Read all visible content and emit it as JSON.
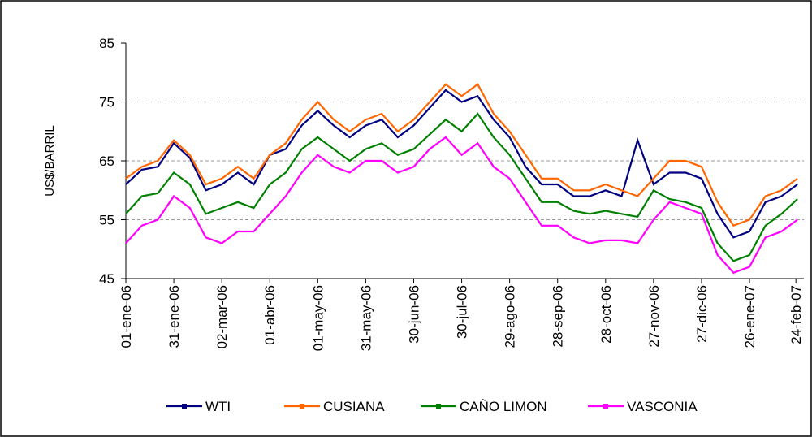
{
  "chart_data": {
    "type": "line",
    "y_label": "US$/BARRIL",
    "x": [
      "2006-01-01",
      "2006-01-11",
      "2006-01-21",
      "2006-01-31",
      "2006-02-10",
      "2006-02-20",
      "2006-03-02",
      "2006-03-12",
      "2006-03-22",
      "2006-04-01",
      "2006-04-11",
      "2006-04-21",
      "2006-05-01",
      "2006-05-11",
      "2006-05-21",
      "2006-05-31",
      "2006-06-10",
      "2006-06-20",
      "2006-06-30",
      "2006-07-10",
      "2006-07-20",
      "2006-07-30",
      "2006-08-09",
      "2006-08-19",
      "2006-08-29",
      "2006-09-08",
      "2006-09-18",
      "2006-09-28",
      "2006-10-08",
      "2006-10-18",
      "2006-10-28",
      "2006-11-07",
      "2006-11-17",
      "2006-11-27",
      "2006-12-07",
      "2006-12-17",
      "2006-12-27",
      "2007-01-06",
      "2007-01-16",
      "2007-01-26",
      "2007-02-05",
      "2007-02-15",
      "2007-02-25"
    ],
    "series": [
      {
        "name": "WTI",
        "color": "#000080",
        "values": [
          61,
          63.5,
          64,
          68,
          65.5,
          60,
          61,
          63,
          61,
          66,
          67,
          71,
          73.5,
          71,
          69,
          71,
          72,
          69,
          71,
          74,
          77,
          75,
          76,
          72,
          69,
          64,
          61,
          61,
          59,
          59,
          60,
          59,
          68.5,
          61,
          63,
          63,
          62,
          56,
          52,
          53,
          58,
          59,
          61
        ]
      },
      {
        "name": "CUSIANA",
        "color": "#ff6600",
        "values": [
          62,
          64,
          65,
          68.5,
          66,
          61,
          62,
          64,
          62,
          66,
          68,
          72,
          75,
          72,
          70,
          72,
          73,
          70,
          72,
          75,
          78,
          76,
          78,
          73,
          70,
          66,
          62,
          62,
          60,
          60,
          61,
          60,
          59,
          62,
          65,
          65,
          64,
          58,
          54,
          55,
          59,
          60,
          62
        ]
      },
      {
        "name": "CAÑO LIMON",
        "color": "#008000",
        "values": [
          56,
          59,
          59.5,
          63,
          61,
          56,
          57,
          58,
          57,
          61,
          63,
          67,
          69,
          67,
          65,
          67,
          68,
          66,
          67,
          69.5,
          72,
          70,
          73,
          69,
          66,
          62,
          58,
          58,
          56.5,
          56,
          56.5,
          56,
          55.5,
          60,
          58.5,
          58,
          57,
          51,
          48,
          49,
          54,
          56,
          58.5
        ]
      },
      {
        "name": "VASCONIA",
        "color": "#ff00ff",
        "values": [
          51,
          54,
          55,
          59,
          57,
          52,
          51,
          53,
          53,
          56,
          59,
          63,
          66,
          64,
          63,
          65,
          65,
          63,
          64,
          67,
          69,
          66,
          68,
          64,
          62,
          58,
          54,
          54,
          52,
          51,
          51.5,
          51.5,
          51,
          55,
          58,
          57,
          56,
          49,
          46,
          47,
          52,
          53,
          55
        ]
      }
    ],
    "xlim": [
      "2006-01-01",
      "2007-03-01"
    ],
    "xticks": [
      {
        "value": "2006-01-01",
        "label": "01-ene-06"
      },
      {
        "value": "2006-01-31",
        "label": "31-ene-06"
      },
      {
        "value": "2006-03-02",
        "label": "02-mar-06"
      },
      {
        "value": "2006-04-01",
        "label": "01-abr-06"
      },
      {
        "value": "2006-05-01",
        "label": "01-may-06"
      },
      {
        "value": "2006-05-31",
        "label": "31-may-06"
      },
      {
        "value": "2006-06-30",
        "label": "30-jun-06"
      },
      {
        "value": "2006-07-30",
        "label": "30-jul-06"
      },
      {
        "value": "2006-08-29",
        "label": "29-ago-06"
      },
      {
        "value": "2006-09-28",
        "label": "28-sep-06"
      },
      {
        "value": "2006-10-28",
        "label": "28-oct-06"
      },
      {
        "value": "2006-11-27",
        "label": "27-nov-06"
      },
      {
        "value": "2006-12-27",
        "label": "27-dic-06"
      },
      {
        "value": "2007-01-26",
        "label": "26-ene-07"
      },
      {
        "value": "2007-02-24",
        "label": "24-feb-07"
      }
    ],
    "ylim": [
      45,
      85
    ],
    "yticks": [
      45,
      55,
      65,
      75,
      85
    ],
    "grid": true,
    "legend": "bottom"
  }
}
